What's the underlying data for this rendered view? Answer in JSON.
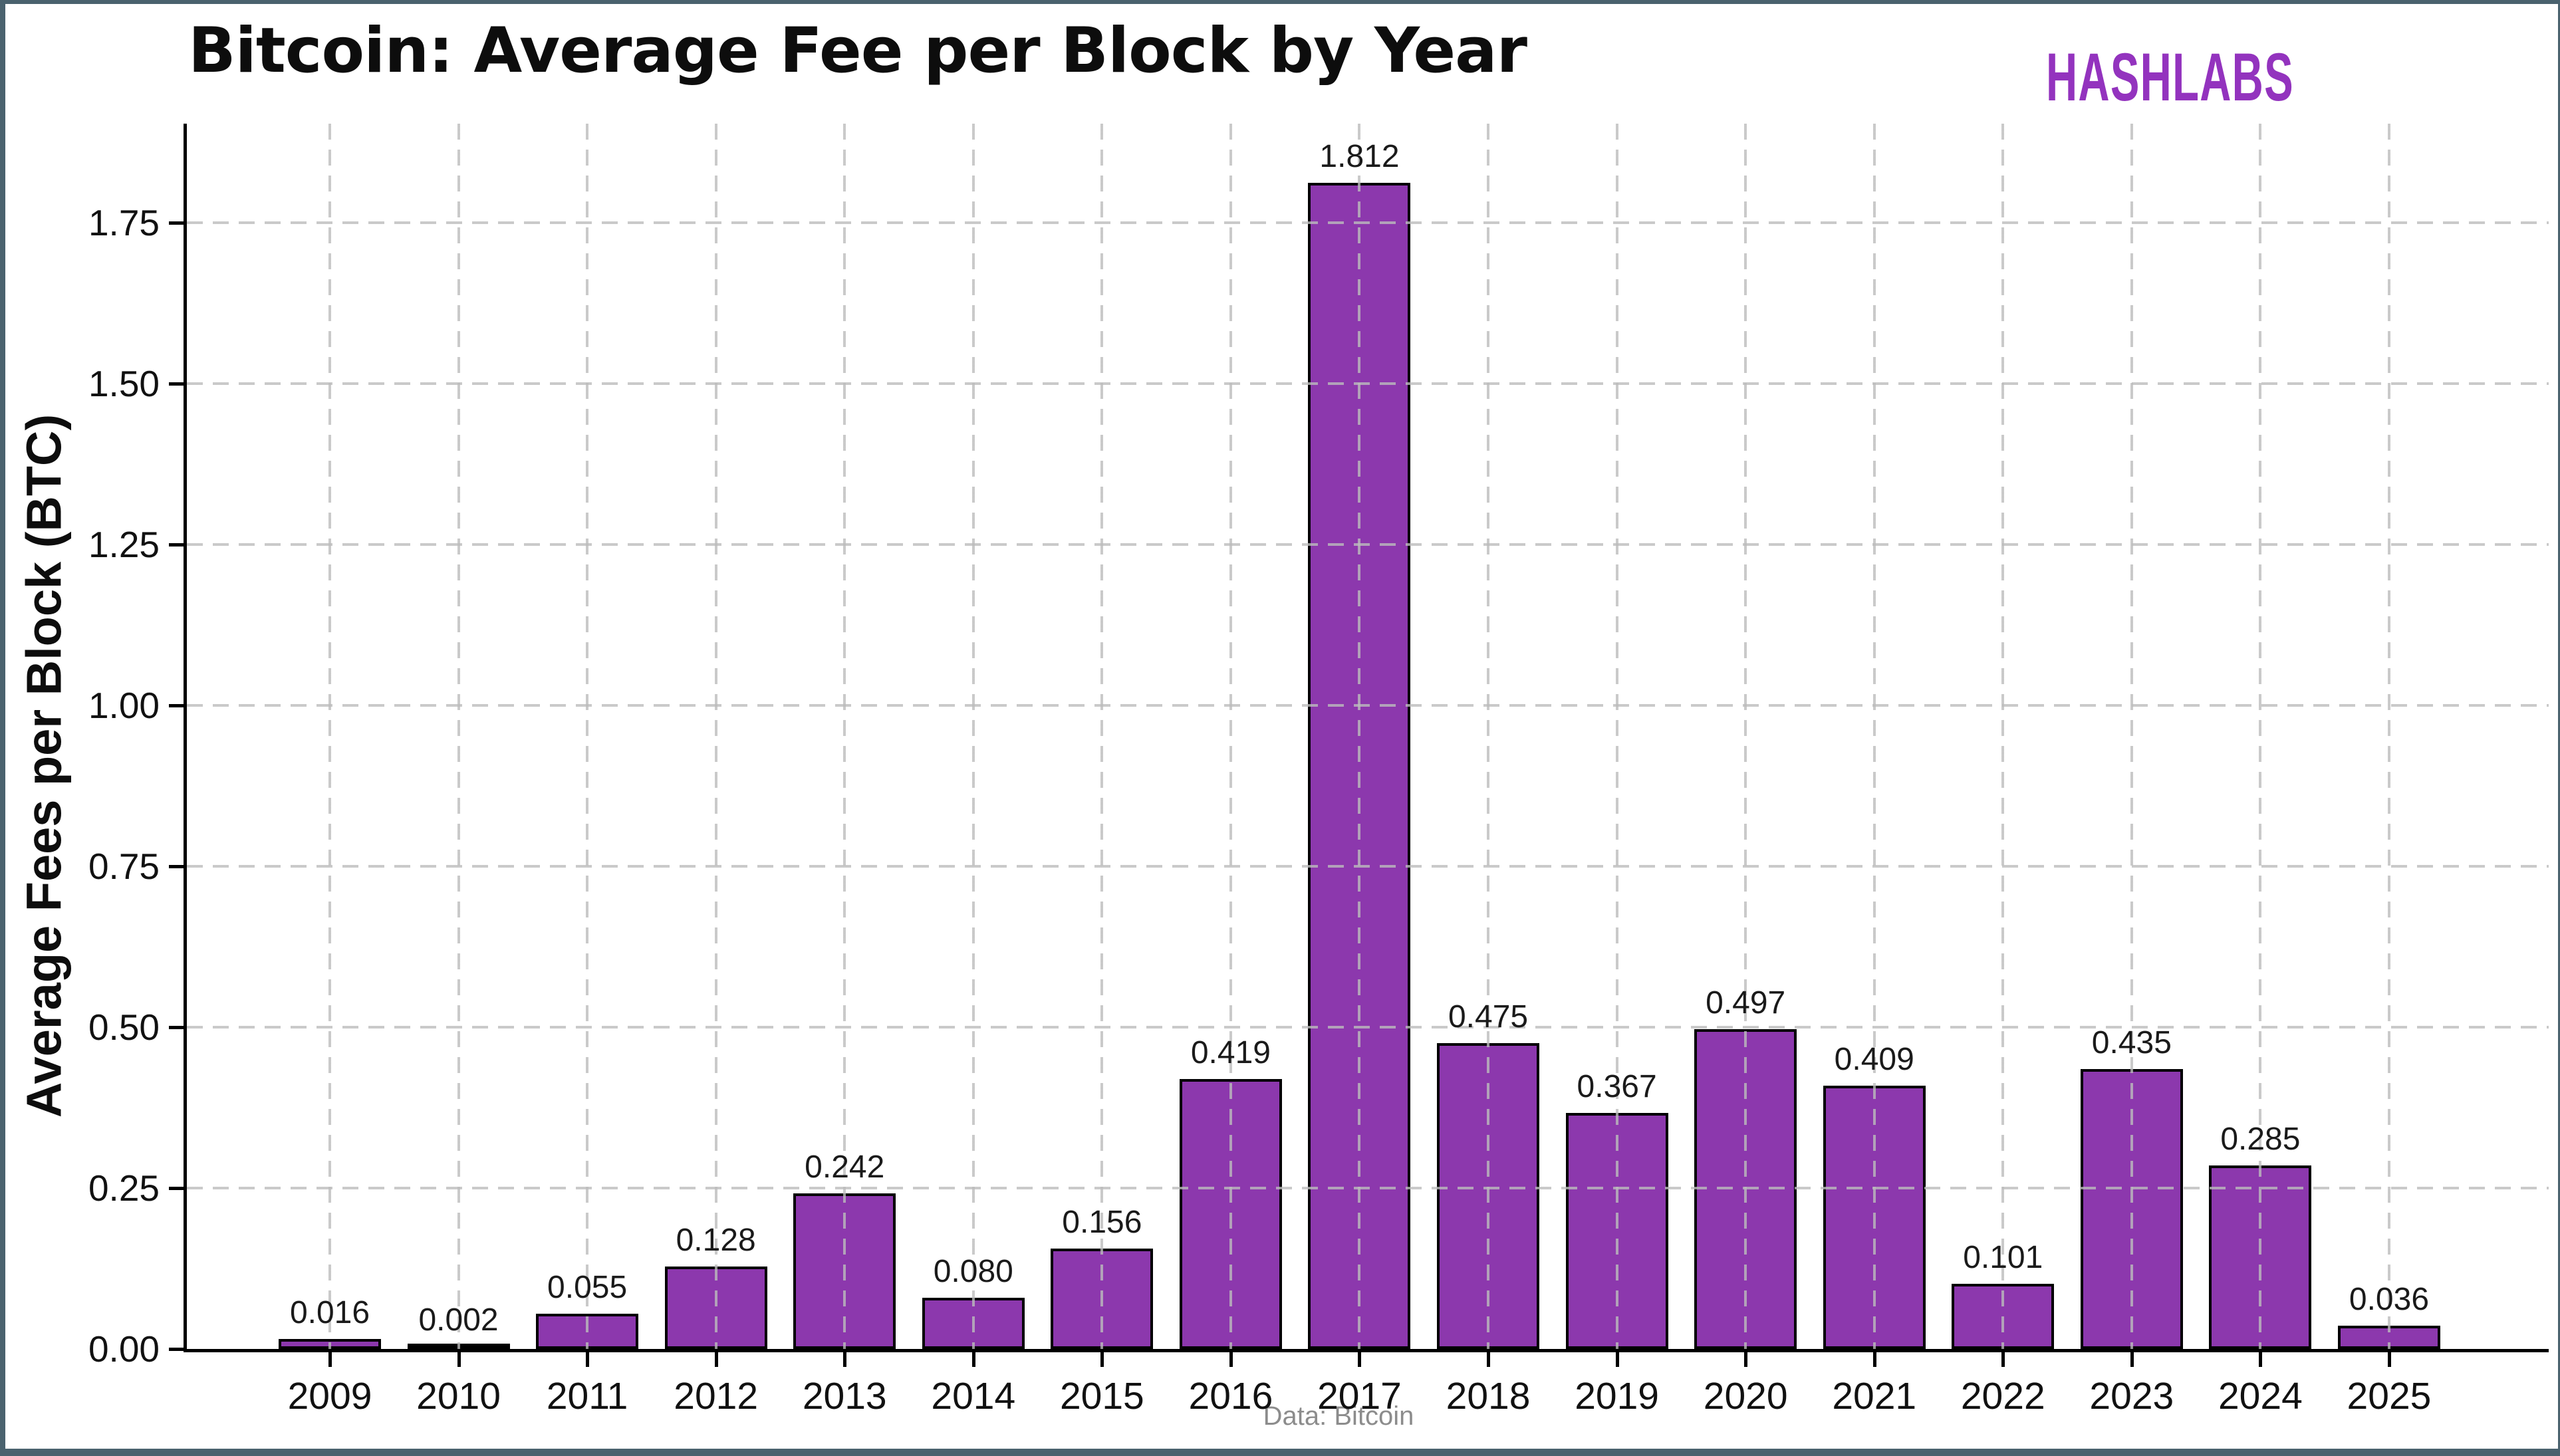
{
  "header": {
    "title": "Bitcoin: Average Fee per Block by Year",
    "logo": "HASHLABS"
  },
  "footer": {
    "source": "Data: Bitcoin"
  },
  "colors": {
    "bar_fill": "#8c38ad",
    "bar_edge": "#000000",
    "logo": "#9333be",
    "frame": "#4a626e",
    "grid": "rgba(188,188,188,0.8)",
    "footer_text": "#8c8c8c",
    "title_text": "#0d0d0d"
  },
  "chart_data": {
    "type": "bar",
    "title": "Bitcoin: Average Fee per Block by Year",
    "xlabel": "",
    "ylabel": "Average Fees per Block (BTC)",
    "source_note": "Data: Bitcoin",
    "categories": [
      "2009",
      "2010",
      "2011",
      "2012",
      "2013",
      "2014",
      "2015",
      "2016",
      "2017",
      "2018",
      "2019",
      "2020",
      "2021",
      "2022",
      "2023",
      "2024",
      "2025"
    ],
    "values": [
      0.016,
      0.002,
      0.055,
      0.128,
      0.242,
      0.08,
      0.156,
      0.419,
      1.812,
      0.475,
      0.367,
      0.497,
      0.409,
      0.101,
      0.435,
      0.285,
      0.036
    ],
    "value_labels": [
      "0.016",
      "0.002",
      "0.055",
      "0.128",
      "0.242",
      "0.080",
      "0.156",
      "0.419",
      "1.812",
      "0.475",
      "0.367",
      "0.497",
      "0.409",
      "0.101",
      "0.435",
      "0.285",
      "0.036"
    ],
    "ylim": [
      0,
      1.9
    ],
    "ytick_values": [
      0,
      0.25,
      0.5,
      0.75,
      1.0,
      1.25,
      1.5,
      1.75
    ],
    "ytick_labels": [
      "0.00",
      "0.25",
      "0.50",
      "0.75",
      "1.00",
      "1.25",
      "1.50",
      "1.75"
    ],
    "grid": "dashed, both axes, drawn over bars",
    "legend": "none",
    "bar_color": "#8c38ad",
    "bar_edge_color": "#000000"
  }
}
